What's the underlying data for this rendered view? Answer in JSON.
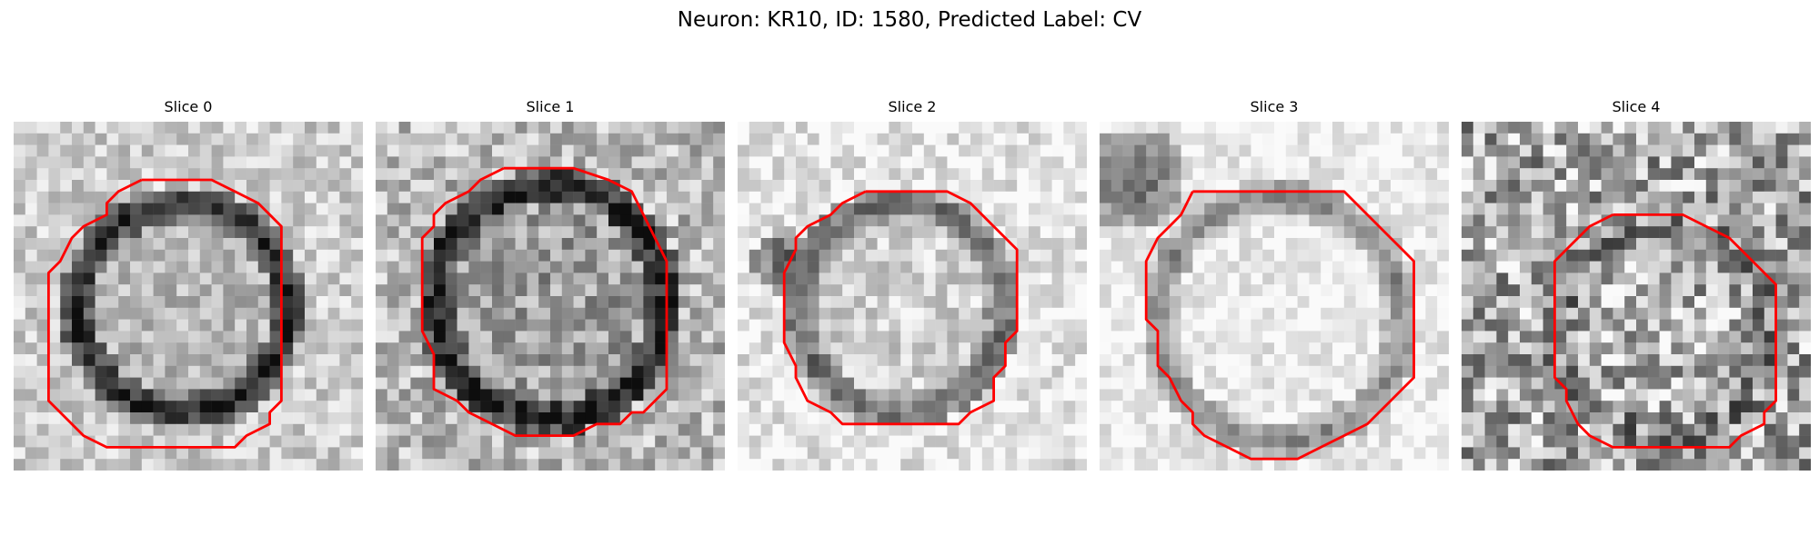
{
  "figure": {
    "title": "Neuron: KR10, ID: 1580, Predicted Label: CV"
  },
  "panels": [
    {
      "title": "Slice 0",
      "image": "grayscale microscopy slice with red segmentation contour"
    },
    {
      "title": "Slice 1",
      "image": "grayscale microscopy slice with red segmentation contour"
    },
    {
      "title": "Slice 2",
      "image": "grayscale microscopy slice with red segmentation contour"
    },
    {
      "title": "Slice 3",
      "image": "grayscale microscopy slice with red segmentation contour"
    },
    {
      "title": "Slice 4",
      "image": "grayscale microscopy slice with red segmentation contour"
    }
  ],
  "colors": {
    "contour": "#ff0000",
    "background": "#ffffff"
  }
}
